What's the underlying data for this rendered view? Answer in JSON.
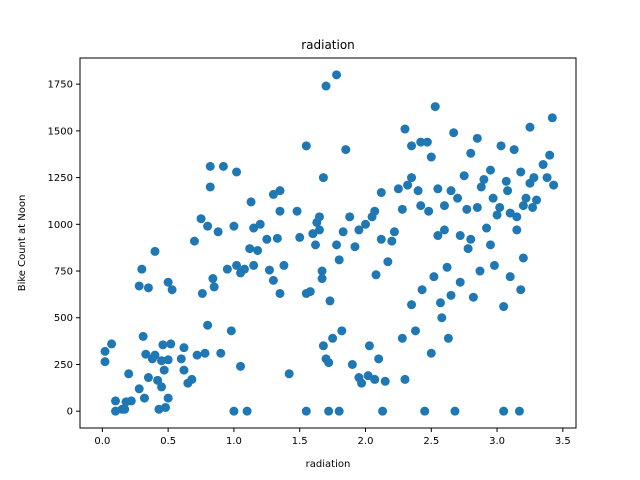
{
  "chart_data": {
    "type": "scatter",
    "title": "radiation",
    "xlabel": "radiation",
    "ylabel": "Bike Count at Noon",
    "xlim": [
      -0.17,
      3.6
    ],
    "ylim": [
      -90,
      1890
    ],
    "xticks": [
      0.0,
      0.5,
      1.0,
      1.5,
      2.0,
      2.5,
      3.0,
      3.5
    ],
    "xtick_labels": [
      "0.0",
      "0.5",
      "1.0",
      "1.5",
      "2.0",
      "2.5",
      "3.0",
      "3.5"
    ],
    "yticks": [
      0,
      250,
      500,
      750,
      1000,
      1250,
      1500,
      1750
    ],
    "ytick_labels": [
      "0",
      "250",
      "500",
      "750",
      "1000",
      "1250",
      "1500",
      "1750"
    ],
    "grid": false,
    "legend": "none",
    "marker_color": "#1f77b4",
    "series": [
      {
        "points": [
          [
            0.02,
            320
          ],
          [
            0.02,
            265
          ],
          [
            0.07,
            360
          ],
          [
            0.1,
            55
          ],
          [
            0.1,
            0
          ],
          [
            0.15,
            10
          ],
          [
            0.17,
            10
          ],
          [
            0.18,
            50
          ],
          [
            0.2,
            200
          ],
          [
            0.22,
            55
          ],
          [
            0.28,
            120
          ],
          [
            0.28,
            670
          ],
          [
            0.3,
            760
          ],
          [
            0.31,
            400
          ],
          [
            0.32,
            70
          ],
          [
            0.33,
            305
          ],
          [
            0.35,
            660
          ],
          [
            0.35,
            180
          ],
          [
            0.38,
            280
          ],
          [
            0.4,
            855
          ],
          [
            0.4,
            300
          ],
          [
            0.42,
            165
          ],
          [
            0.43,
            10
          ],
          [
            0.45,
            270
          ],
          [
            0.45,
            130
          ],
          [
            0.46,
            355
          ],
          [
            0.47,
            220
          ],
          [
            0.48,
            20
          ],
          [
            0.5,
            70
          ],
          [
            0.5,
            275
          ],
          [
            0.5,
            690
          ],
          [
            0.52,
            360
          ],
          [
            0.53,
            650
          ],
          [
            0.6,
            280
          ],
          [
            0.62,
            340
          ],
          [
            0.62,
            220
          ],
          [
            0.65,
            150
          ],
          [
            0.68,
            170
          ],
          [
            0.7,
            910
          ],
          [
            0.72,
            300
          ],
          [
            0.75,
            1030
          ],
          [
            0.76,
            630
          ],
          [
            0.78,
            310
          ],
          [
            0.8,
            990
          ],
          [
            0.8,
            460
          ],
          [
            0.82,
            1310
          ],
          [
            0.82,
            1200
          ],
          [
            0.84,
            710
          ],
          [
            0.85,
            665
          ],
          [
            0.88,
            960
          ],
          [
            0.9,
            310
          ],
          [
            0.92,
            1310
          ],
          [
            0.95,
            760
          ],
          [
            0.98,
            430
          ],
          [
            1.0,
            990
          ],
          [
            1.0,
            0
          ],
          [
            1.02,
            1280
          ],
          [
            1.02,
            780
          ],
          [
            1.05,
            740
          ],
          [
            1.05,
            240
          ],
          [
            1.08,
            760
          ],
          [
            1.1,
            0
          ],
          [
            1.12,
            870
          ],
          [
            1.13,
            1120
          ],
          [
            1.15,
            780
          ],
          [
            1.15,
            980
          ],
          [
            1.18,
            860
          ],
          [
            1.2,
            1000
          ],
          [
            1.25,
            920
          ],
          [
            1.27,
            755
          ],
          [
            1.3,
            1160
          ],
          [
            1.3,
            700
          ],
          [
            1.33,
            925
          ],
          [
            1.35,
            1070
          ],
          [
            1.35,
            1180
          ],
          [
            1.35,
            630
          ],
          [
            1.38,
            780
          ],
          [
            1.42,
            200
          ],
          [
            1.48,
            1070
          ],
          [
            1.5,
            930
          ],
          [
            1.55,
            630
          ],
          [
            1.55,
            1420
          ],
          [
            1.55,
            0
          ],
          [
            1.58,
            640
          ],
          [
            1.6,
            950
          ],
          [
            1.62,
            890
          ],
          [
            1.63,
            1010
          ],
          [
            1.65,
            1040
          ],
          [
            1.65,
            970
          ],
          [
            1.67,
            750
          ],
          [
            1.67,
            710
          ],
          [
            1.68,
            1250
          ],
          [
            1.68,
            350
          ],
          [
            1.7,
            1740
          ],
          [
            1.7,
            280
          ],
          [
            1.72,
            260
          ],
          [
            1.72,
            0
          ],
          [
            1.73,
            590
          ],
          [
            1.75,
            390
          ],
          [
            1.78,
            1800
          ],
          [
            1.78,
            890
          ],
          [
            1.8,
            810
          ],
          [
            1.8,
            0
          ],
          [
            1.82,
            430
          ],
          [
            1.83,
            960
          ],
          [
            1.85,
            1400
          ],
          [
            1.88,
            1040
          ],
          [
            1.9,
            250
          ],
          [
            1.92,
            880
          ],
          [
            1.95,
            970
          ],
          [
            1.95,
            180
          ],
          [
            1.97,
            150
          ],
          [
            2.0,
            1000
          ],
          [
            2.02,
            190
          ],
          [
            2.03,
            350
          ],
          [
            2.05,
            1040
          ],
          [
            2.07,
            1070
          ],
          [
            2.07,
            170
          ],
          [
            2.08,
            730
          ],
          [
            2.1,
            280
          ],
          [
            2.12,
            1170
          ],
          [
            2.12,
            920
          ],
          [
            2.13,
            0
          ],
          [
            2.15,
            160
          ],
          [
            2.17,
            800
          ],
          [
            2.2,
            910
          ],
          [
            2.22,
            960
          ],
          [
            2.25,
            1190
          ],
          [
            2.28,
            1080
          ],
          [
            2.28,
            390
          ],
          [
            2.3,
            170
          ],
          [
            2.3,
            1510
          ],
          [
            2.32,
            1210
          ],
          [
            2.35,
            1420
          ],
          [
            2.35,
            1250
          ],
          [
            2.35,
            570
          ],
          [
            2.38,
            430
          ],
          [
            2.4,
            1180
          ],
          [
            2.42,
            1440
          ],
          [
            2.42,
            1100
          ],
          [
            2.43,
            650
          ],
          [
            2.45,
            0
          ],
          [
            2.47,
            1440
          ],
          [
            2.48,
            1070
          ],
          [
            2.5,
            1360
          ],
          [
            2.5,
            310
          ],
          [
            2.52,
            720
          ],
          [
            2.53,
            1630
          ],
          [
            2.55,
            1190
          ],
          [
            2.55,
            940
          ],
          [
            2.57,
            580
          ],
          [
            2.58,
            500
          ],
          [
            2.6,
            1100
          ],
          [
            2.6,
            970
          ],
          [
            2.62,
            770
          ],
          [
            2.63,
            390
          ],
          [
            2.65,
            1180
          ],
          [
            2.65,
            620
          ],
          [
            2.67,
            1490
          ],
          [
            2.68,
            0
          ],
          [
            2.7,
            1140
          ],
          [
            2.72,
            940
          ],
          [
            2.72,
            690
          ],
          [
            2.75,
            1260
          ],
          [
            2.77,
            1080
          ],
          [
            2.78,
            870
          ],
          [
            2.8,
            920
          ],
          [
            2.8,
            1380
          ],
          [
            2.82,
            610
          ],
          [
            2.85,
            1460
          ],
          [
            2.85,
            1090
          ],
          [
            2.87,
            750
          ],
          [
            2.88,
            1200
          ],
          [
            2.9,
            1240
          ],
          [
            2.92,
            980
          ],
          [
            2.95,
            1290
          ],
          [
            2.95,
            890
          ],
          [
            2.97,
            1140
          ],
          [
            2.98,
            780
          ],
          [
            3.0,
            1050
          ],
          [
            3.02,
            1090
          ],
          [
            3.03,
            1420
          ],
          [
            3.05,
            560
          ],
          [
            3.05,
            0
          ],
          [
            3.07,
            1230
          ],
          [
            3.08,
            1180
          ],
          [
            3.1,
            1060
          ],
          [
            3.1,
            720
          ],
          [
            3.13,
            1400
          ],
          [
            3.15,
            1040
          ],
          [
            3.15,
            970
          ],
          [
            3.17,
            0
          ],
          [
            3.18,
            1280
          ],
          [
            3.18,
            650
          ],
          [
            3.2,
            1100
          ],
          [
            3.2,
            820
          ],
          [
            3.22,
            1140
          ],
          [
            3.25,
            1220
          ],
          [
            3.25,
            1520
          ],
          [
            3.27,
            1090
          ],
          [
            3.28,
            1250
          ],
          [
            3.3,
            1130
          ],
          [
            3.35,
            1320
          ],
          [
            3.38,
            1250
          ],
          [
            3.4,
            1370
          ],
          [
            3.42,
            1570
          ],
          [
            3.43,
            1210
          ]
        ]
      }
    ]
  }
}
